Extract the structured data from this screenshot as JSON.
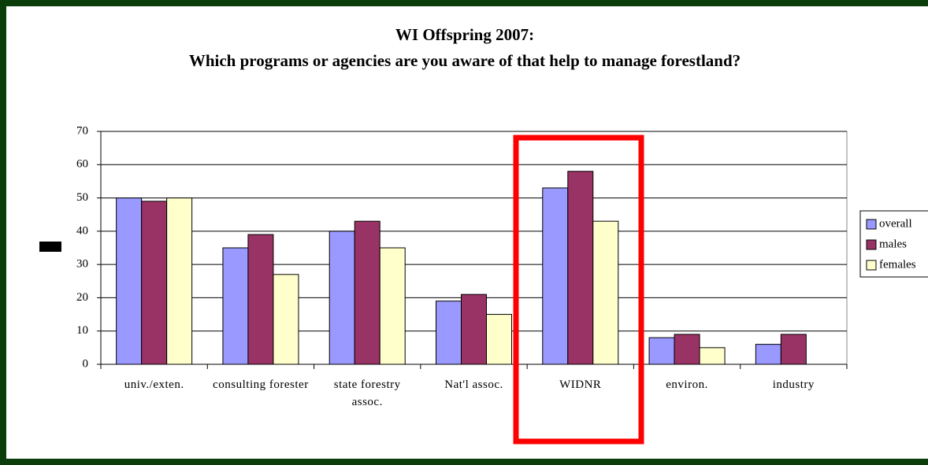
{
  "chart_data": {
    "type": "bar",
    "title": "WI Offspring 2007:",
    "subtitle": "Which programs or agencies are you aware of that help to manage forestland?",
    "categories": [
      "univ./exten.",
      "consulting forester",
      "state forestry assoc.",
      "Nat'l assoc.",
      "WIDNR",
      "environ.",
      "industry"
    ],
    "series": [
      {
        "name": "overall",
        "color": "#9999ff",
        "values": [
          50,
          35,
          40,
          19,
          53,
          8,
          6
        ]
      },
      {
        "name": "males",
        "color": "#993366",
        "values": [
          49,
          39,
          43,
          21,
          58,
          9,
          9
        ]
      },
      {
        "name": "females",
        "color": "#ffffcc",
        "values": [
          50,
          27,
          35,
          15,
          43,
          5,
          null
        ]
      }
    ],
    "ylim": [
      0,
      70
    ],
    "yticks": [
      0,
      10,
      20,
      30,
      40,
      50,
      60,
      70
    ],
    "grid": true,
    "legend": "right"
  }
}
